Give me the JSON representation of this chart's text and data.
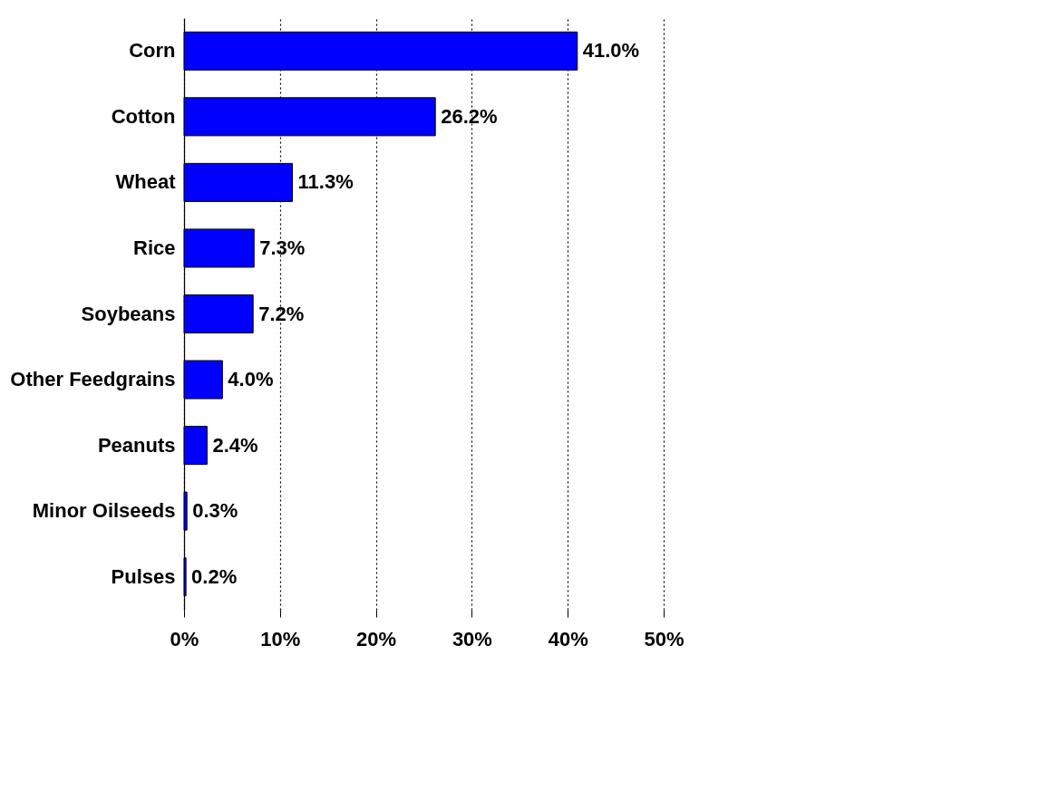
{
  "chart_data": {
    "type": "bar",
    "orientation": "horizontal",
    "categories": [
      "Corn",
      "Cotton",
      "Wheat",
      "Rice",
      "Soybeans",
      "Other Feedgrains",
      "Peanuts",
      "Minor Oilseeds",
      "Pulses"
    ],
    "values": [
      41.0,
      26.2,
      11.3,
      7.3,
      7.2,
      4.0,
      2.4,
      0.3,
      0.2
    ],
    "value_labels": [
      "41.0%",
      "26.2%",
      "11.3%",
      "7.3%",
      "7.2%",
      "4.0%",
      "2.4%",
      "0.3%",
      "0.2%"
    ],
    "color": "#0000ff",
    "xlim": [
      0,
      50
    ],
    "xticks": [
      {
        "value": 0,
        "label": "0%"
      },
      {
        "value": 10,
        "label": "10%"
      },
      {
        "value": 20,
        "label": "20%"
      },
      {
        "value": 30,
        "label": "30%"
      },
      {
        "value": 40,
        "label": "40%"
      },
      {
        "value": 50,
        "label": "50%"
      }
    ],
    "grid": "x"
  }
}
